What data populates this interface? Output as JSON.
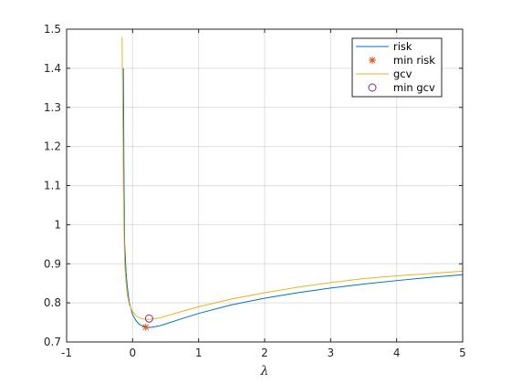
{
  "chart_data": {
    "type": "line",
    "xlabel": "λ",
    "ylabel": "",
    "xlim": [
      -1,
      5
    ],
    "ylim": [
      0.7,
      1.5
    ],
    "xticks": [
      "-1",
      "0",
      "1",
      "2",
      "3",
      "4",
      "5"
    ],
    "yticks": [
      "0.7",
      "0.8",
      "0.9",
      "1",
      "1.1",
      "1.2",
      "1.3",
      "1.4",
      "1.5"
    ],
    "grid": true,
    "legend_position": "top-right",
    "series": [
      {
        "name": "risk",
        "color": "#0072BD",
        "marker": "none",
        "x": [
          -0.14,
          -0.13,
          -0.12,
          -0.1,
          -0.08,
          -0.05,
          0.0,
          0.05,
          0.1,
          0.15,
          0.2,
          0.25,
          0.3,
          0.4,
          0.5,
          0.7,
          1.0,
          1.5,
          2.0,
          2.5,
          3.0,
          3.5,
          4.0,
          4.5,
          5.0
        ],
        "y": [
          1.4,
          1.1,
          0.95,
          0.88,
          0.84,
          0.8,
          0.77,
          0.755,
          0.745,
          0.741,
          0.738,
          0.737,
          0.738,
          0.741,
          0.746,
          0.757,
          0.773,
          0.795,
          0.812,
          0.826,
          0.838,
          0.848,
          0.857,
          0.865,
          0.872
        ]
      },
      {
        "name": "min risk",
        "color": "#D95319",
        "marker": "asterisk",
        "x": [
          0.2
        ],
        "y": [
          0.738
        ]
      },
      {
        "name": "gcv",
        "color": "#EDB120",
        "marker": "none",
        "x": [
          -0.16,
          -0.15,
          -0.14,
          -0.13,
          -0.12,
          -0.1,
          -0.08,
          -0.05,
          0.0,
          0.05,
          0.1,
          0.15,
          0.2,
          0.25,
          0.3,
          0.4,
          0.5,
          0.7,
          1.0,
          1.5,
          2.0,
          2.5,
          3.0,
          3.5,
          4.0,
          4.5,
          5.0
        ],
        "y": [
          1.48,
          1.3,
          1.1,
          0.98,
          0.9,
          0.85,
          0.82,
          0.795,
          0.778,
          0.767,
          0.762,
          0.759,
          0.758,
          0.758,
          0.759,
          0.761,
          0.766,
          0.776,
          0.79,
          0.81,
          0.826,
          0.84,
          0.852,
          0.862,
          0.869,
          0.875,
          0.881
        ]
      },
      {
        "name": "min gcv",
        "color": "#7E2F8E",
        "marker": "circle",
        "x": [
          0.25
        ],
        "y": [
          0.76
        ]
      }
    ]
  }
}
